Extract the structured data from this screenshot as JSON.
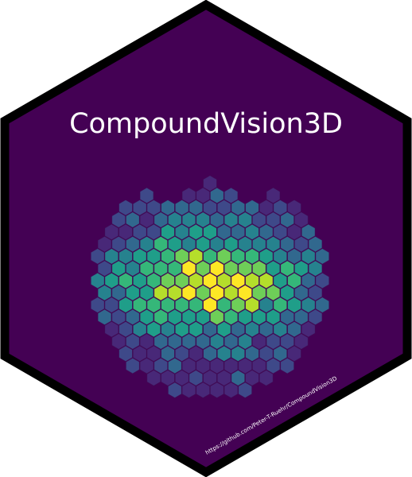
{
  "sticker": {
    "title": "CompoundVision3D",
    "url": "https://github.com/Peter-T-Ruehr/CompoundVision3D",
    "colors": {
      "background": "#ffffff",
      "border": "#000000",
      "fill": "#440154",
      "text": "#ffffff"
    }
  },
  "hexbin": {
    "palette": "viridis",
    "colors": [
      "#440154",
      "#482878",
      "#3e4989",
      "#31688e",
      "#26828e",
      "#1f9e89",
      "#35b779",
      "#6ece58",
      "#b5de2b",
      "#fde725"
    ]
  }
}
